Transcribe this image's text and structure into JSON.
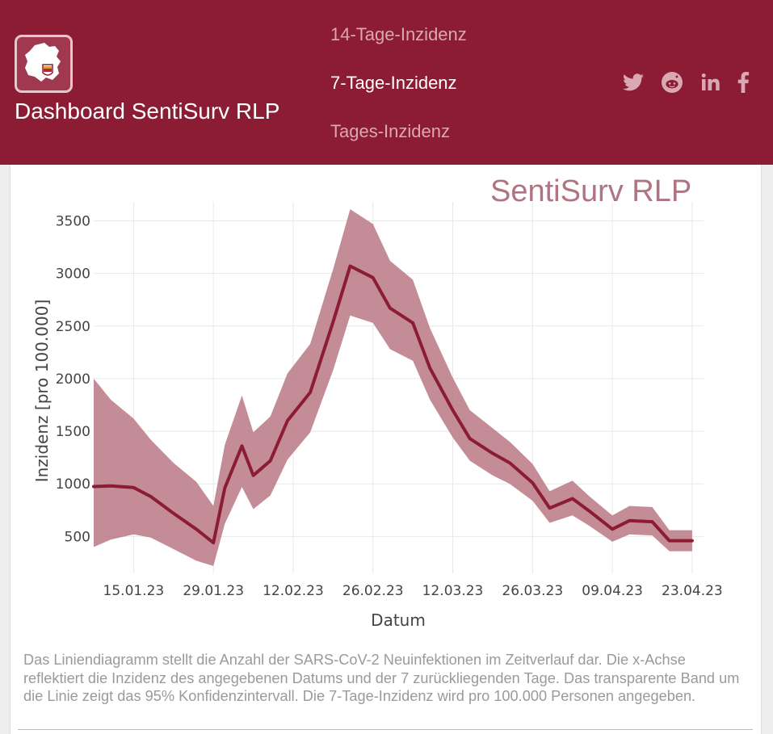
{
  "header": {
    "title": "Dashboard SentiSurv RLP",
    "nav": [
      {
        "label": "14-Tage-Inzidenz",
        "active": false
      },
      {
        "label": "7-Tage-Inzidenz",
        "active": true
      },
      {
        "label": "Tages-Inzidenz",
        "active": false
      }
    ],
    "social": [
      "twitter-icon",
      "reddit-icon",
      "linkedin-icon",
      "facebook-icon"
    ],
    "logo_icon": "rlp-map-icon"
  },
  "colors": {
    "brand": "#8b1c34",
    "band": "#b87884",
    "line": "#8b1c34",
    "nav_inactive": "#d9a8b3",
    "watermark": "#b07382"
  },
  "chart_title": "SentiSurv RLP",
  "chart_data": {
    "type": "line",
    "title": "SentiSurv RLP",
    "xlabel": "Datum",
    "ylabel": "Inzidenz [pro 100.000]",
    "x_unit": "days since 08.01.23",
    "xlim": [
      0,
      107
    ],
    "ylim": [
      150,
      3680
    ],
    "yticks": [
      500,
      1000,
      1500,
      2000,
      2500,
      3000,
      3500
    ],
    "xticks": [
      {
        "day": 7,
        "label": "15.01.23"
      },
      {
        "day": 21,
        "label": "29.01.23"
      },
      {
        "day": 35,
        "label": "12.02.23"
      },
      {
        "day": 49,
        "label": "26.02.23"
      },
      {
        "day": 63,
        "label": "12.03.23"
      },
      {
        "day": 77,
        "label": "26.03.23"
      },
      {
        "day": 91,
        "label": "09.04.23"
      },
      {
        "day": 105,
        "label": "23.04.23"
      }
    ],
    "grid": true,
    "series": [
      {
        "name": "7-Tage-Inzidenz",
        "x": [
          0,
          3,
          7,
          10,
          14,
          18,
          21,
          23,
          26,
          28,
          31,
          34,
          38,
          42,
          45,
          49,
          52,
          56,
          59,
          63,
          66,
          70,
          73,
          77,
          80,
          84,
          87,
          91,
          94,
          98,
          101,
          105
        ],
        "y": [
          975,
          980,
          965,
          880,
          720,
          570,
          440,
          960,
          1360,
          1080,
          1220,
          1600,
          1870,
          2540,
          3070,
          2960,
          2670,
          2530,
          2100,
          1700,
          1430,
          1290,
          1200,
          1010,
          770,
          860,
          740,
          570,
          650,
          640,
          460,
          460
        ],
        "lower": [
          400,
          470,
          520,
          490,
          380,
          270,
          220,
          620,
          970,
          760,
          890,
          1230,
          1490,
          2080,
          2600,
          2530,
          2280,
          2170,
          1800,
          1440,
          1220,
          1080,
          1000,
          840,
          630,
          700,
          600,
          450,
          520,
          510,
          360,
          360
        ],
        "upper": [
          2000,
          1800,
          1620,
          1420,
          1200,
          1020,
          790,
          1370,
          1840,
          1490,
          1640,
          2050,
          2330,
          3040,
          3610,
          3470,
          3120,
          2940,
          2480,
          2010,
          1700,
          1530,
          1400,
          1190,
          930,
          1030,
          880,
          700,
          790,
          780,
          560,
          560
        ]
      }
    ]
  },
  "description": "Das Liniendiagramm stellt die Anzahl der SARS-CoV-2 Neuinfektionen im Zeitverlauf dar. Die x-Achse reflektiert die Inzidenz des angegebenen Datums und der 7 zurückliegenden Tage. Das transparente Band um die Linie zeigt das 95% Konfidenzintervall. Die 7-Tage-Inzidenz wird pro 100.000 Personen angegeben."
}
